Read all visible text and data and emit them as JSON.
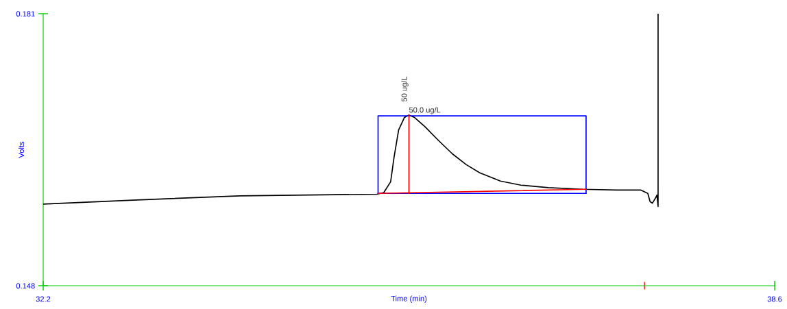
{
  "chart_data": {
    "type": "line",
    "xlabel": "Time (min)",
    "ylabel": "Volts",
    "xlim": [
      32.2,
      38.6
    ],
    "ylim": [
      0.148,
      0.181
    ],
    "xticks": [
      32.2,
      38.6
    ],
    "yticks": [
      0.148,
      0.181
    ],
    "series": [
      {
        "color": "#000000",
        "x": [
          32.2,
          33.02,
          33.92,
          35.12,
          35.18,
          35.24,
          35.27,
          35.31,
          35.36,
          35.4,
          35.45,
          35.54,
          35.66,
          35.78,
          35.9,
          36.02,
          36.2,
          36.38,
          36.62,
          36.92,
          37.22,
          37.43,
          37.49,
          37.51,
          37.53,
          37.56,
          37.57,
          37.58,
          37.58
        ],
        "values": [
          0.1579,
          0.1584,
          0.1589,
          0.1591,
          0.1593,
          0.1606,
          0.1636,
          0.1669,
          0.1684,
          0.1687,
          0.1684,
          0.1673,
          0.1656,
          0.164,
          0.1627,
          0.1617,
          0.1607,
          0.1602,
          0.1599,
          0.1597,
          0.1596,
          0.1596,
          0.1592,
          0.1582,
          0.158,
          0.1587,
          0.159,
          0.1576,
          0.181
        ]
      },
      {
        "color": "#0000ff",
        "x": [
          35.13,
          35.13,
          36.95,
          36.95
        ],
        "values": [
          0.1592,
          0.1686,
          0.1686,
          0.1592
        ]
      },
      {
        "color": "#0000ff",
        "x": [
          35.13,
          36.95
        ],
        "values": [
          0.1592,
          0.1592
        ]
      },
      {
        "color": "#ff0000",
        "x": [
          35.13,
          36.95
        ],
        "values": [
          0.1592,
          0.1597
        ]
      },
      {
        "color": "#ff0000",
        "x": [
          35.4,
          35.4
        ],
        "values": [
          0.1592,
          0.1687
        ]
      }
    ],
    "annotations": [
      {
        "text": "50 ug/L",
        "x": 35.4,
        "y": 0.1687
      },
      {
        "text": "50.0 ug/L",
        "x": 35.4,
        "y": 0.1687
      }
    ],
    "grid": false,
    "legend": false
  }
}
